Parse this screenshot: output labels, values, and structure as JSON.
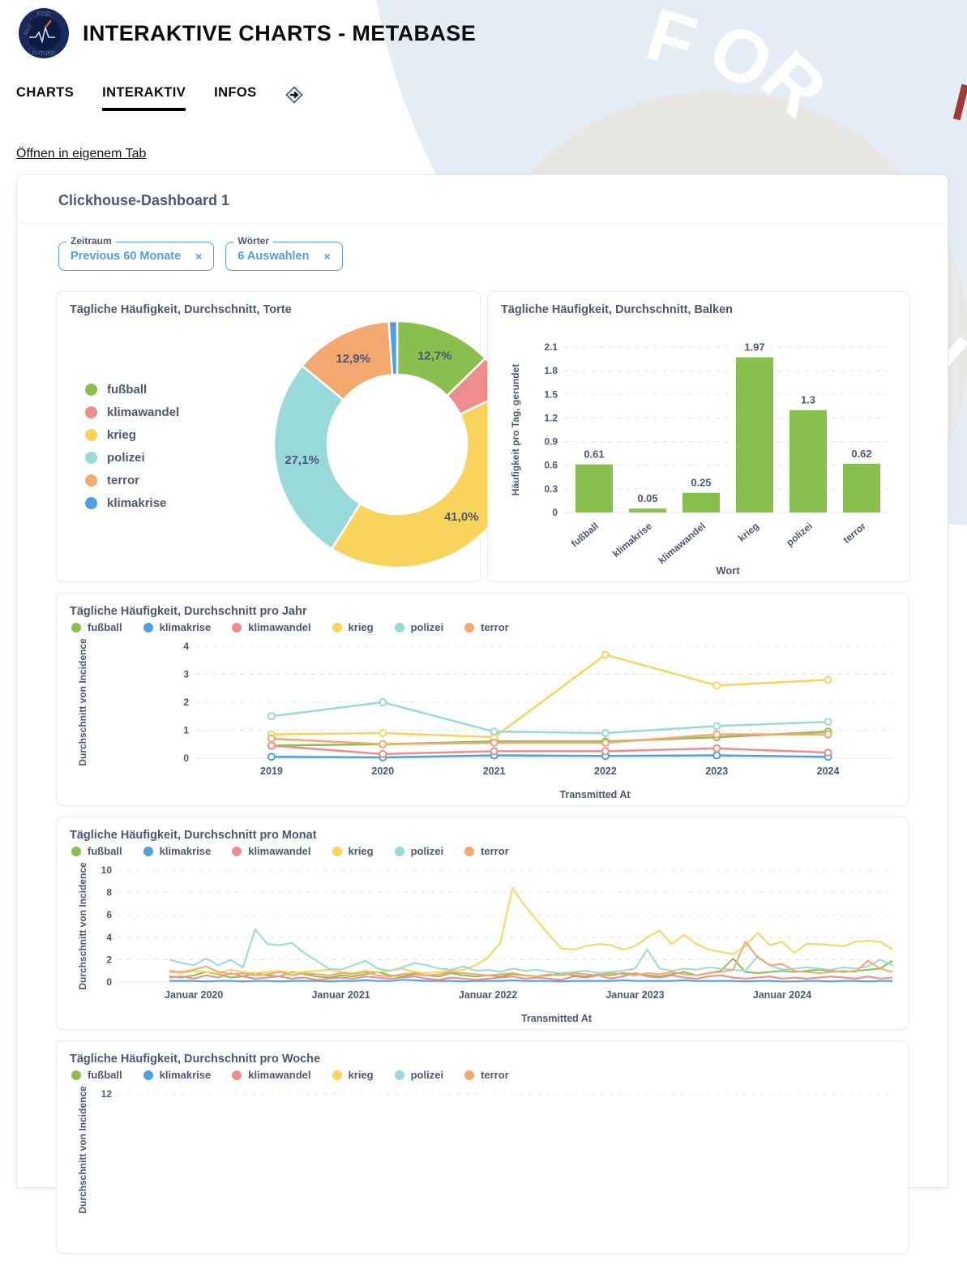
{
  "header": {
    "title": "INTERAKTIVE CHARTS - METABASE"
  },
  "logo": {
    "top": "FOR",
    "bottom": "FUTURE",
    "left": "M&E"
  },
  "watermark": {
    "letters": [
      "F",
      "O",
      "R"
    ],
    "stray_letter": "E"
  },
  "nav": {
    "items": [
      {
        "label": "CHARTS",
        "active": false
      },
      {
        "label": "INTERAKTIV",
        "active": true
      },
      {
        "label": "INFOS",
        "active": false
      }
    ]
  },
  "open_link": "Öffnen in eigenem Tab",
  "dashboard": {
    "title": "Clickhouse-Dashboard 1",
    "filters": [
      {
        "label": "Zeitraum",
        "value": "Previous 60 Monate",
        "clear": "×"
      },
      {
        "label": "Wörter",
        "value": "6 Auswahlen",
        "clear": "×"
      }
    ]
  },
  "palette": {
    "fußball": "#88bf4d",
    "klimakrise": "#509ee3",
    "klimawandel": "#ef8c8c",
    "krieg": "#f9d45c",
    "polizei": "#98d9d9",
    "terror": "#f2a86f"
  },
  "chart_data": [
    {
      "id": "torte",
      "type": "pie",
      "title": "Tägliche Häufigkeit, Durchschnitt, Torte",
      "legend": [
        "fußball",
        "klimawandel",
        "krieg",
        "polizei",
        "terror",
        "klimakrise"
      ],
      "slices": [
        {
          "name": "fußball",
          "pct": 12.7,
          "label": "12,7%",
          "color": "#88bf4d",
          "label_color": "#ffffff"
        },
        {
          "name": "klimawandel",
          "pct": 5.2,
          "label": "",
          "color": "#ef8c8c",
          "label_color": "#ffffff"
        },
        {
          "name": "krieg",
          "pct": 41.0,
          "label": "41,0%",
          "color": "#f9d45c",
          "label_color": "#4c5773"
        },
        {
          "name": "polizei",
          "pct": 27.1,
          "label": "27,1%",
          "color": "#98d9d9",
          "label_color": "#ffffff"
        },
        {
          "name": "terror",
          "pct": 12.9,
          "label": "12,9%",
          "color": "#f2a86f",
          "label_color": "#ffffff"
        },
        {
          "name": "klimakrise",
          "pct": 1.1,
          "label": "",
          "color": "#509ee3",
          "label_color": "#ffffff"
        }
      ]
    },
    {
      "id": "balken",
      "type": "bar",
      "title": "Tägliche Häufigkeit, Durchschnitt, Balken",
      "categories": [
        "fußball",
        "klimakrise",
        "klimawandel",
        "krieg",
        "polizei",
        "terror"
      ],
      "values": [
        0.61,
        0.05,
        0.25,
        1.97,
        1.3,
        0.62
      ],
      "value_labels": [
        "0.61",
        "0.05",
        "0.25",
        "1.97",
        "1.3",
        "0.62"
      ],
      "bar_color": "#88bf4d",
      "xlabel": "Wort",
      "ylabel": "Häufigkeit pro Tag, gerundet",
      "y_ticks": [
        0,
        0.3,
        0.6,
        0.9,
        1.2,
        1.5,
        1.8,
        2.1
      ],
      "ylim": [
        0,
        2.1
      ]
    },
    {
      "id": "jahr",
      "type": "line",
      "title": "Tägliche Häufigkeit, Durchschnitt pro Jahr",
      "legend": [
        "fußball",
        "klimakrise",
        "klimawandel",
        "krieg",
        "polizei",
        "terror"
      ],
      "xlabel": "Transmitted At",
      "ylabel": "Durchschnitt von Incidence",
      "x_ticks": [
        "2019",
        "2020",
        "2021",
        "2022",
        "2023",
        "2024"
      ],
      "y_ticks": [
        0,
        1,
        2,
        3,
        4
      ],
      "ylim": [
        0,
        4
      ],
      "series": [
        {
          "name": "fußball",
          "values": [
            0.45,
            0.5,
            0.6,
            0.6,
            0.75,
            0.95
          ]
        },
        {
          "name": "klimakrise",
          "values": [
            0.05,
            0.03,
            0.1,
            0.08,
            0.1,
            0.05
          ]
        },
        {
          "name": "klimawandel",
          "values": [
            0.45,
            0.15,
            0.25,
            0.25,
            0.35,
            0.2
          ]
        },
        {
          "name": "krieg",
          "values": [
            0.85,
            0.9,
            0.75,
            3.7,
            2.6,
            2.8
          ]
        },
        {
          "name": "polizei",
          "values": [
            1.5,
            2.0,
            0.95,
            0.9,
            1.15,
            1.3
          ]
        },
        {
          "name": "terror",
          "values": [
            0.7,
            0.5,
            0.55,
            0.55,
            0.85,
            0.85
          ]
        }
      ]
    },
    {
      "id": "monat",
      "type": "line",
      "title": "Tägliche Häufigkeit, Durchschnitt pro Monat",
      "legend": [
        "fußball",
        "klimakrise",
        "klimawandel",
        "krieg",
        "polizei",
        "terror"
      ],
      "xlabel": "Transmitted At",
      "ylabel": "Durchschnitt von Incidence",
      "x_ticks": [
        "Januar 2020",
        "Januar 2021",
        "Januar 2022",
        "Januar 2023",
        "Januar 2024"
      ],
      "x_tick_positions": [
        2,
        14,
        26,
        38,
        50
      ],
      "n_points": 60,
      "x_range_note": "monatlich, November 2019 bis Oktober 2024",
      "y_ticks": [
        0,
        2,
        4,
        6,
        8,
        10
      ],
      "ylim": [
        0,
        10
      ],
      "series": [
        {
          "name": "fußball",
          "values": [
            0.5,
            0.4,
            0.6,
            0.9,
            0.7,
            0.4,
            0.5,
            0.8,
            0.6,
            0.5,
            0.9,
            0.7,
            0.5,
            0.4,
            0.6,
            0.5,
            0.7,
            0.9,
            0.6,
            0.5,
            0.7,
            0.6,
            0.5,
            0.8,
            0.6,
            0.5,
            0.6,
            0.5,
            0.7,
            0.6,
            0.5,
            0.6,
            0.8,
            0.6,
            0.5,
            0.7,
            0.6,
            0.8,
            0.7,
            0.6,
            0.5,
            0.7,
            0.9,
            0.6,
            0.8,
            1.0,
            2.1,
            0.9,
            0.8,
            0.9,
            1.0,
            0.9,
            1.0,
            1.1,
            1.0,
            0.9,
            1.0,
            1.1,
            1.2,
            1.9
          ]
        },
        {
          "name": "klimakrise",
          "values": [
            0.1,
            0.1,
            0.1,
            0.05,
            0.1,
            0.1,
            0.05,
            0.1,
            0.1,
            0.05,
            0.1,
            0.1,
            0.1,
            0.05,
            0.1,
            0.1,
            0.15,
            0.1,
            0.1,
            0.2,
            0.15,
            0.1,
            0.1,
            0.1,
            0.05,
            0.1,
            0.1,
            0.1,
            0.15,
            0.1,
            0.1,
            0.1,
            0.05,
            0.1,
            0.1,
            0.1,
            0.1,
            0.15,
            0.1,
            0.1,
            0.1,
            0.1,
            0.15,
            0.1,
            0.1,
            0.1,
            0.1,
            0.05,
            0.1,
            0.1,
            0.05,
            0.05,
            0.1,
            0.1,
            0.05,
            0.1,
            0.1,
            0.05,
            0.1,
            0.1
          ]
        },
        {
          "name": "klimawandel",
          "values": [
            0.4,
            0.5,
            0.3,
            0.6,
            0.4,
            0.8,
            0.5,
            0.3,
            0.4,
            0.5,
            0.3,
            0.4,
            0.2,
            0.3,
            0.4,
            0.3,
            0.5,
            0.4,
            0.3,
            0.4,
            0.5,
            0.3,
            0.2,
            0.4,
            0.3,
            0.2,
            0.3,
            0.4,
            0.5,
            0.3,
            0.4,
            0.3,
            0.2,
            0.5,
            0.4,
            0.6,
            0.3,
            0.5,
            0.8,
            0.5,
            0.4,
            0.6,
            0.4,
            0.3,
            0.5,
            0.6,
            0.4,
            0.3,
            0.4,
            0.5,
            0.3,
            0.4,
            0.3,
            0.4,
            0.5,
            0.4,
            0.3,
            0.5,
            0.3,
            0.4
          ]
        },
        {
          "name": "krieg",
          "values": [
            0.9,
            0.8,
            1.0,
            0.9,
            0.8,
            1.1,
            0.9,
            0.8,
            0.9,
            1.0,
            0.8,
            0.9,
            1.0,
            1.1,
            0.9,
            0.8,
            1.0,
            0.9,
            1.0,
            1.2,
            0.9,
            0.8,
            0.9,
            1.0,
            1.1,
            1.5,
            2.2,
            3.5,
            8.4,
            6.8,
            5.5,
            4.2,
            3.0,
            2.9,
            3.2,
            3.4,
            3.3,
            2.9,
            3.2,
            4.0,
            4.6,
            3.4,
            4.2,
            3.4,
            2.9,
            2.7,
            2.5,
            3.2,
            4.4,
            3.3,
            3.6,
            2.6,
            3.4,
            3.4,
            3.3,
            3.2,
            3.6,
            3.7,
            3.6,
            2.9
          ]
        },
        {
          "name": "polizei",
          "values": [
            2.0,
            1.7,
            1.5,
            2.1,
            1.5,
            2.0,
            1.3,
            4.7,
            3.4,
            3.3,
            3.5,
            2.6,
            1.9,
            1.2,
            1.1,
            1.5,
            1.9,
            1.2,
            1.0,
            1.3,
            1.7,
            1.5,
            1.2,
            1.1,
            1.4,
            1.0,
            1.1,
            0.9,
            1.2,
            1.0,
            1.1,
            0.9,
            0.8,
            0.9,
            1.0,
            0.8,
            0.9,
            1.0,
            1.2,
            2.9,
            1.2,
            1.0,
            1.2,
            1.1,
            1.3,
            1.2,
            1.1,
            1.0,
            2.3,
            1.5,
            1.1,
            1.2,
            1.3,
            1.2,
            1.1,
            1.3,
            1.2,
            1.4,
            2.0,
            1.5
          ]
        },
        {
          "name": "terror",
          "values": [
            1.0,
            0.9,
            1.1,
            1.4,
            0.9,
            0.7,
            0.8,
            0.6,
            0.7,
            0.9,
            0.6,
            0.8,
            0.7,
            0.6,
            0.8,
            0.7,
            0.9,
            0.6,
            0.5,
            0.7,
            0.8,
            0.6,
            0.7,
            0.9,
            0.8,
            0.7,
            0.6,
            0.7,
            0.8,
            0.6,
            0.5,
            0.7,
            0.6,
            0.8,
            0.7,
            0.6,
            0.8,
            0.7,
            0.6,
            0.8,
            0.7,
            0.9,
            0.7,
            0.6,
            0.8,
            0.9,
            1.1,
            3.6,
            2.2,
            1.5,
            1.6,
            1.0,
            0.9,
            0.8,
            0.9,
            1.0,
            0.9,
            1.9,
            1.2,
            0.9
          ]
        }
      ]
    },
    {
      "id": "woche",
      "type": "line",
      "title": "Tägliche Häufigkeit, Durchschnitt pro Woche",
      "legend": [
        "fußball",
        "klimakrise",
        "klimawandel",
        "krieg",
        "polizei",
        "terror"
      ],
      "ylabel": "Durchschnitt von Incidence",
      "y_ticks": [
        12
      ],
      "ylim": [
        0,
        12
      ],
      "series": []
    }
  ]
}
